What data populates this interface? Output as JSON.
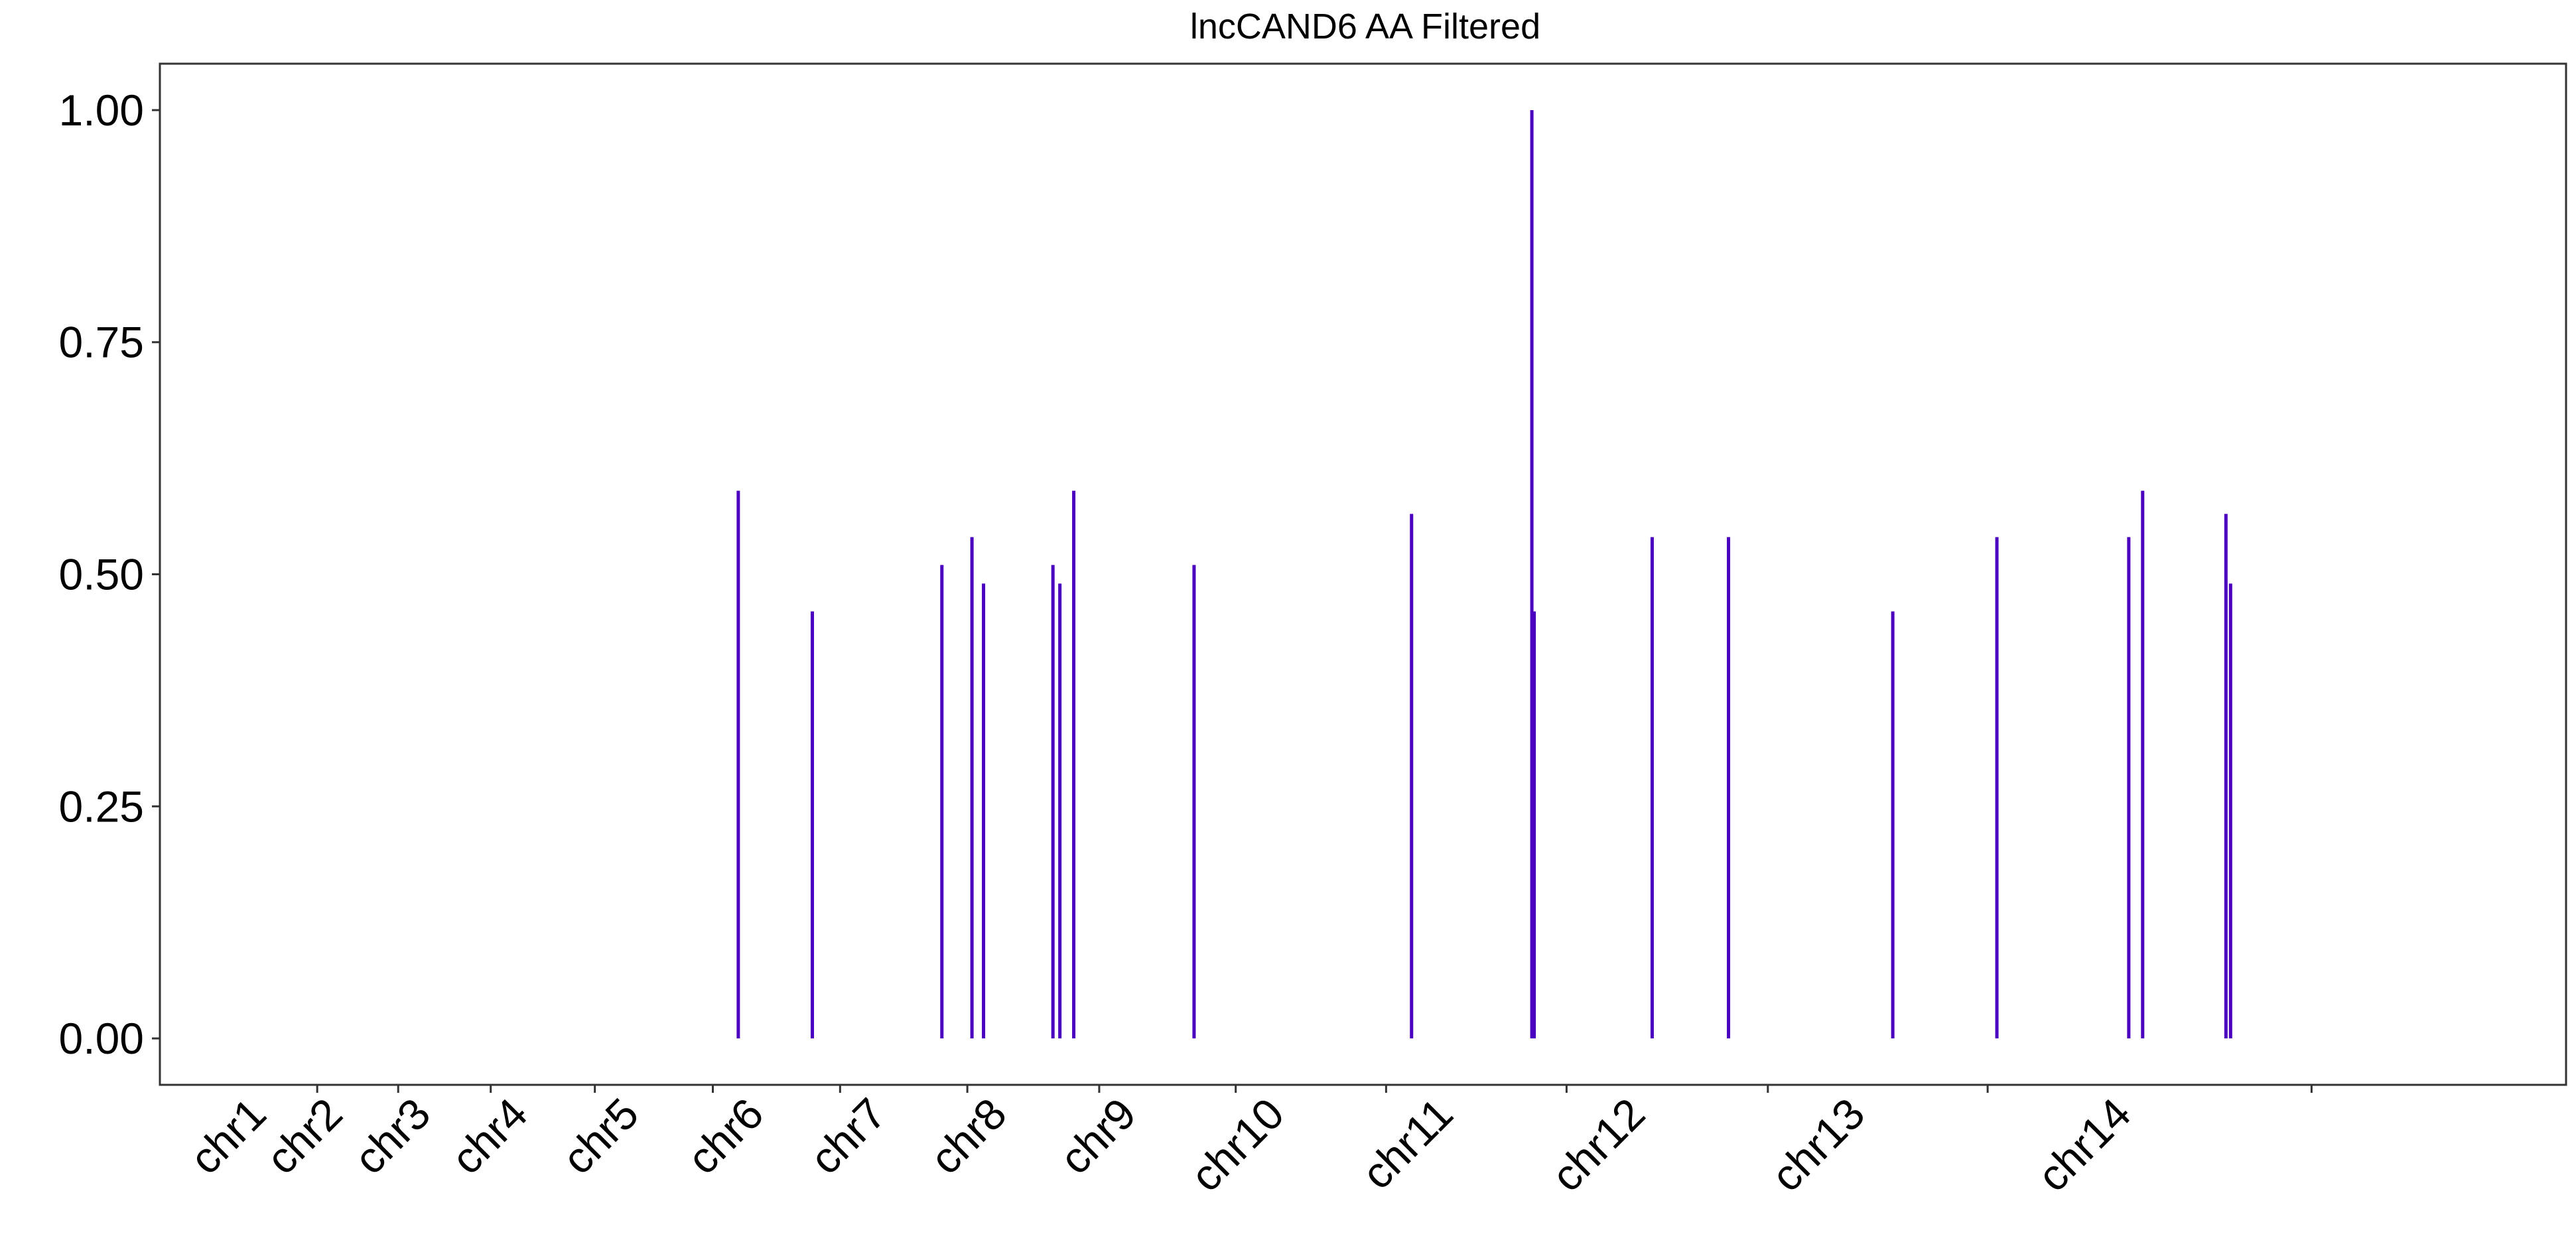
{
  "chart_data": {
    "type": "bar",
    "title": "lncCAND6 AA Filtered",
    "xlabel": "",
    "ylabel": "",
    "ylim": [
      -0.05,
      1.05
    ],
    "yticks": [
      "0.00",
      "0.25",
      "0.50",
      "0.75",
      "1.00"
    ],
    "ytick_values": [
      0,
      0.25,
      0.5,
      0.75,
      1.0
    ],
    "categories": [
      "chr1",
      "chr2",
      "chr3",
      "chr4",
      "chr5",
      "chr6",
      "chr7",
      "chr8",
      "chr9",
      "chr10",
      "chr11",
      "chr12",
      "chr13",
      "chr14"
    ],
    "genome_position_unit": "Mb",
    "xlim": [
      0,
      1040
    ],
    "category_center_positions": [
      47,
      80,
      118,
      160,
      208,
      262,
      315,
      367,
      423,
      487,
      560,
      643,
      738,
      853
    ],
    "chromosome_boundaries": [
      68,
      103,
      143,
      188,
      239,
      294,
      349,
      406,
      465,
      530,
      608,
      695,
      790,
      930
    ],
    "series": [
      {
        "name": "",
        "color": "#4B00C0",
        "x": [
          250,
          282,
          338,
          351,
          356,
          386,
          389,
          395,
          447,
          541,
          593,
          594,
          645,
          678,
          749,
          794,
          851,
          857,
          893,
          895
        ],
        "values": [
          0.59,
          0.46,
          0.51,
          0.54,
          0.49,
          0.51,
          0.49,
          0.59,
          0.51,
          0.565,
          1.0,
          0.46,
          0.54,
          0.54,
          0.46,
          0.54,
          0.54,
          0.59,
          0.565,
          0.49
        ]
      }
    ],
    "grid": false,
    "legend": "none",
    "colors": {
      "bar": "#4B00C0",
      "axis": "#333333",
      "background": "#ffffff"
    }
  }
}
